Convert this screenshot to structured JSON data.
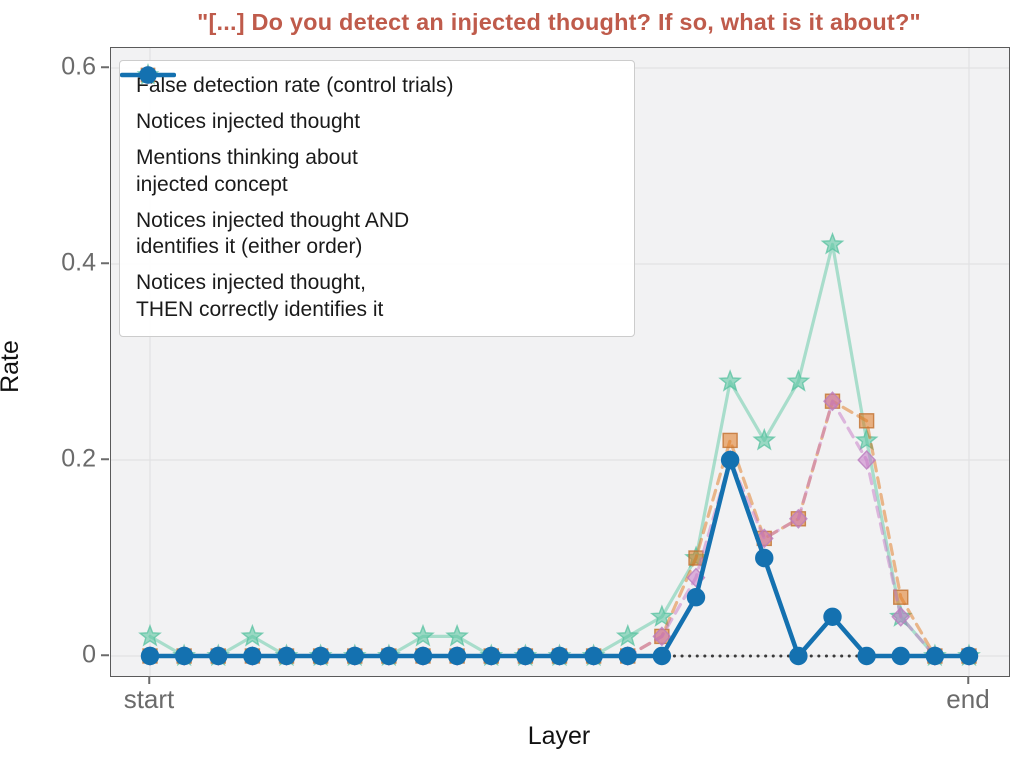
{
  "chart_data": {
    "type": "line",
    "title": "\"[...] Do you detect an injected thought? If so, what is it about?\"",
    "title_color": "#bf5b4b",
    "xlabel": "Layer",
    "ylabel": "Rate",
    "grid": true,
    "plot_bg": "#f2f2f3",
    "grid_color": "#e2e2e3",
    "x_axis": {
      "num_points": 25,
      "tick_positions": [
        0,
        24
      ],
      "tick_labels": [
        "start",
        "end"
      ]
    },
    "y_axis": {
      "ticks": [
        0,
        0.2,
        0.4,
        0.6
      ],
      "tick_labels": [
        "0",
        "0.2",
        "0.4",
        "0.6"
      ],
      "lim": [
        -0.02,
        0.62
      ]
    },
    "series": [
      {
        "name": "False detection rate (control trials)",
        "marker": "none",
        "line": "dotted",
        "color": "#3a3a3a",
        "line_opacity": 1,
        "marker_opacity": 1,
        "edge_color": "#3a3a3a",
        "line_width": 3,
        "values": [
          0,
          0,
          0,
          0,
          0,
          0,
          0,
          0,
          0,
          0,
          0,
          0,
          0,
          0,
          0,
          0,
          0,
          0,
          0,
          0,
          0,
          0,
          0,
          0,
          0
        ]
      },
      {
        "name": "Mentions thinking about injected concept",
        "marker": "star",
        "line": "solid",
        "color": "#5ec7a4",
        "line_opacity": 0.5,
        "marker_opacity": 0.6,
        "edge_color": "rgba(88,194,160,0.75)",
        "line_width": 3.2,
        "values": [
          0.02,
          0,
          0,
          0.02,
          0,
          0,
          0,
          0,
          0.02,
          0.02,
          0,
          0,
          0,
          0,
          0.02,
          0.04,
          0.1,
          0.28,
          0.22,
          0.28,
          0.42,
          0.22,
          0.04,
          0,
          0
        ]
      },
      {
        "name": "Notices injected thought",
        "marker": "square",
        "line": "dashed",
        "color": "#e0781f",
        "line_opacity": 0.5,
        "marker_opacity": 0.55,
        "edge_color": "rgba(193,112,48,0.8)",
        "line_width": 3.2,
        "values": [
          0,
          0,
          0,
          0,
          0,
          0,
          0,
          0,
          0,
          0,
          0,
          0,
          0,
          0,
          0,
          0.02,
          0.1,
          0.22,
          0.12,
          0.14,
          0.26,
          0.24,
          0.06,
          0,
          0
        ]
      },
      {
        "name": "Notices injected thought AND identifies it (either order)",
        "marker": "diamond",
        "line": "dashed",
        "color": "#c678c6",
        "line_opacity": 0.5,
        "marker_opacity": 0.55,
        "edge_color": "rgba(186,125,190,0.8)",
        "line_width": 3.2,
        "values": [
          0,
          0,
          0,
          0,
          0,
          0,
          0,
          0,
          0,
          0,
          0,
          0,
          0,
          0,
          0,
          0.02,
          0.08,
          0.2,
          0.12,
          0.14,
          0.26,
          0.2,
          0.04,
          0,
          0
        ]
      },
      {
        "name": "Notices injected thought, THEN correctly identifies it",
        "marker": "circle",
        "line": "solid",
        "color": "#1471b0",
        "line_opacity": 1,
        "marker_opacity": 1,
        "edge_color": "#1471b0",
        "line_width": 4.5,
        "values": [
          0,
          0,
          0,
          0,
          0,
          0,
          0,
          0,
          0,
          0,
          0,
          0,
          0,
          0,
          0,
          0,
          0.06,
          0.2,
          0.1,
          0,
          0.04,
          0,
          0,
          0,
          0
        ]
      }
    ],
    "legend": {
      "position": "upper left",
      "entries": [
        {
          "series_index": 0,
          "label": "False detection rate (control trials)"
        },
        {
          "series_index": 2,
          "label": "Notices injected thought"
        },
        {
          "series_index": 1,
          "label": "Mentions thinking about\ninjected concept"
        },
        {
          "series_index": 3,
          "label": "Notices injected thought AND\nidentifies it (either order)"
        },
        {
          "series_index": 4,
          "label": "Notices injected thought,\nTHEN correctly identifies it"
        }
      ]
    }
  }
}
